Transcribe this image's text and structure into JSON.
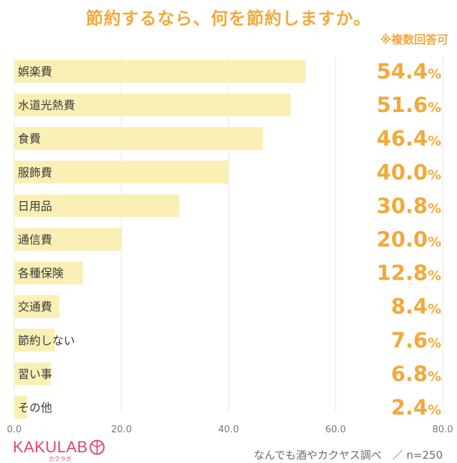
{
  "header": {
    "title": "節約するなら、何を節約しますか。",
    "note": "※複数回答可"
  },
  "footer": {
    "logo": "KAKULAB",
    "logo_sub": "カクラボ",
    "source": "なんでも酒やカクヤス調べ　／ n=250"
  },
  "colors": {
    "bar": "#faf0b5",
    "value": "#f2a93b",
    "label": "#3a3a3a",
    "grid": "#e6e6e6",
    "axis_text": "#777777"
  },
  "chart_data": {
    "type": "bar",
    "orientation": "horizontal",
    "categories": [
      "娯楽費",
      "水道光熱費",
      "食費",
      "服飾費",
      "日用品",
      "通信費",
      "各種保険",
      "交通費",
      "節約しない",
      "習い事",
      "その他"
    ],
    "values": [
      54.4,
      51.6,
      46.4,
      40.0,
      30.8,
      20.0,
      12.8,
      8.4,
      7.6,
      6.8,
      2.4
    ],
    "value_labels": [
      "54.4",
      "51.6",
      "46.4",
      "40.0",
      "30.8",
      "20.0",
      "12.8",
      "8.4",
      "7.6",
      "6.8",
      "2.4"
    ],
    "unit": "%",
    "xlim": [
      0,
      80
    ],
    "xticks": [
      "0.0",
      "20.0",
      "40.0",
      "60.0",
      "80.0"
    ],
    "grid": true
  }
}
